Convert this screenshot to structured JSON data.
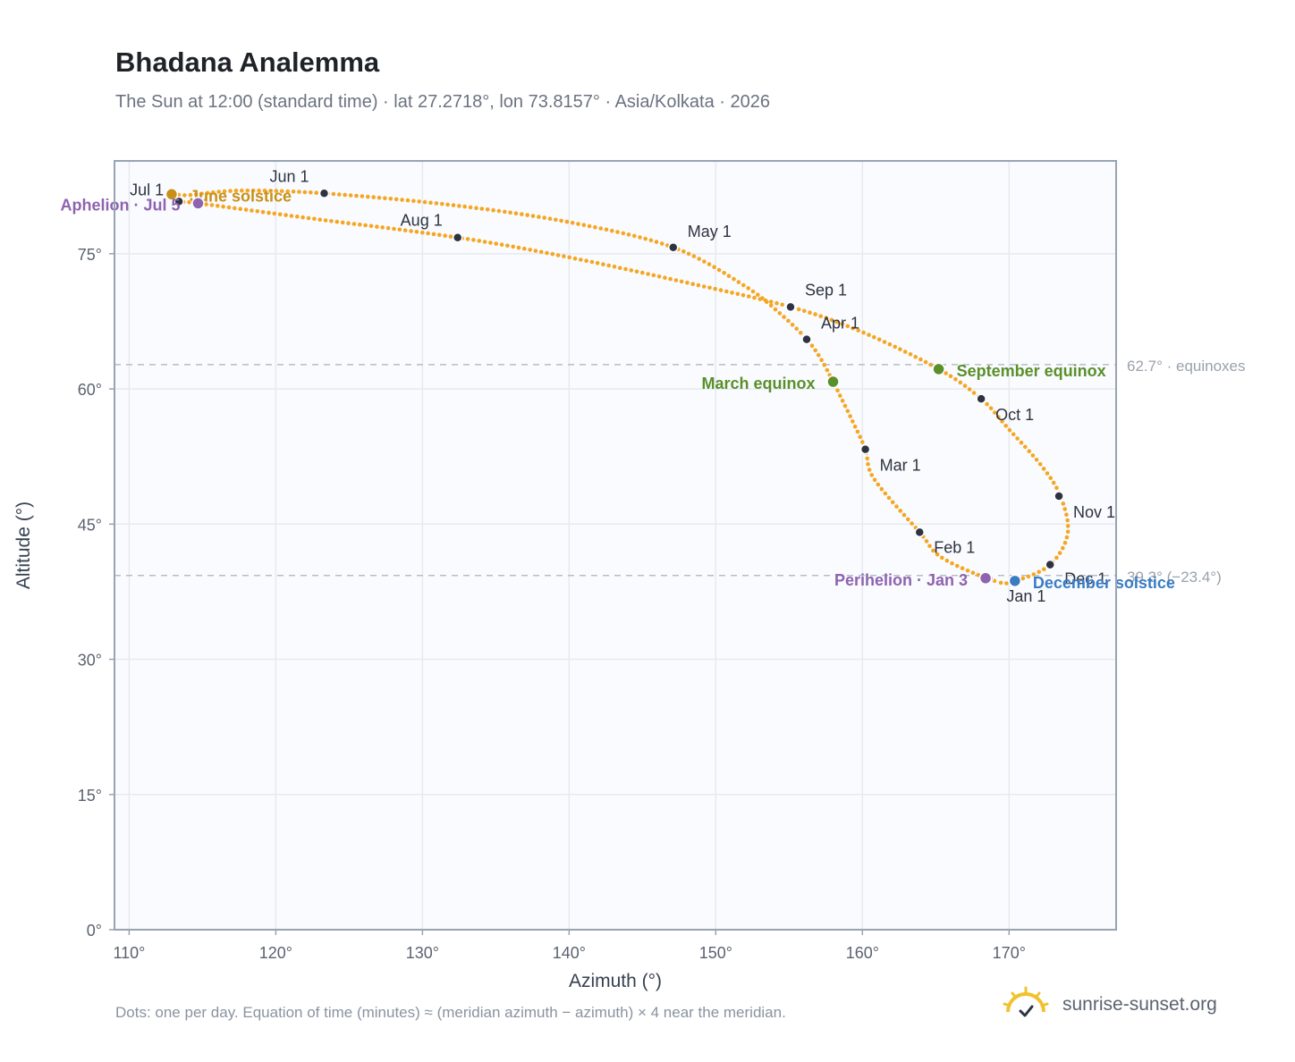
{
  "header": {
    "title": "Bhadana Analemma",
    "subtitle": "The Sun at 12:00 (standard time) · lat 27.2718°, lon 73.8157° · Asia/Kolkata · 2026"
  },
  "footer": {
    "note": "Dots: one per day. Equation of time (minutes) ≈ (meridian azimuth − azimuth) × 4 near the meridian.",
    "brand": "sunrise-sunset.org",
    "brand_icon": "sun-logo-icon"
  },
  "colors": {
    "curve": "#f5a623",
    "month_marker": "#2d3340",
    "equinox": "#5a8f2a",
    "solstice_june": "#c8901a",
    "solstice_december": "#3a7cc4",
    "apsis": "#8e63b0",
    "reference_line": "#b7bdc6",
    "plot_background": "#f9fbfe",
    "grid": "#e6eaf0",
    "frame": "#98a3b3"
  },
  "chart_data": {
    "type": "scatter",
    "title": "Bhadana Analemma",
    "xlabel": "Azimuth (°)",
    "ylabel": "Altitude (°)",
    "xlim": [
      109,
      177.3
    ],
    "ylim": [
      0,
      85.3
    ],
    "x_ticks": [
      110,
      120,
      130,
      140,
      150,
      160,
      170
    ],
    "x_tick_labels": [
      "110°",
      "120°",
      "130°",
      "140°",
      "150°",
      "160°",
      "170°"
    ],
    "y_ticks": [
      0,
      15,
      30,
      45,
      60,
      75
    ],
    "y_tick_labels": [
      "0°",
      "15°",
      "30°",
      "45°",
      "60°",
      "75°"
    ],
    "grid": true,
    "series": [
      {
        "kind": "daily-path",
        "points": [
          [
            169.0,
            38.7
          ],
          [
            165.4,
            41.3
          ],
          [
            163.9,
            44.1
          ],
          [
            160.8,
            50.0
          ],
          [
            160.2,
            53.3
          ],
          [
            159.3,
            56.5
          ],
          [
            158.0,
            60.8
          ],
          [
            157.1,
            63.5
          ],
          [
            156.2,
            65.5
          ],
          [
            154.5,
            68.2
          ],
          [
            152.0,
            71.4
          ],
          [
            147.1,
            75.7
          ],
          [
            140.0,
            78.5
          ],
          [
            132.0,
            80.4
          ],
          [
            123.3,
            81.7
          ],
          [
            117.5,
            82.0
          ],
          [
            114.0,
            81.5
          ],
          [
            112.9,
            81.6
          ],
          [
            113.4,
            80.8
          ],
          [
            114.7,
            80.6
          ],
          [
            122.0,
            79.0
          ],
          [
            132.4,
            76.8
          ],
          [
            140.0,
            74.6
          ],
          [
            148.0,
            71.8
          ],
          [
            155.1,
            69.1
          ],
          [
            160.0,
            66.3
          ],
          [
            165.2,
            62.2
          ],
          [
            168.1,
            58.9
          ],
          [
            170.0,
            55.5
          ],
          [
            172.2,
            51.5
          ],
          [
            173.5,
            48.1
          ],
          [
            174.0,
            44.0
          ],
          [
            172.8,
            40.5
          ],
          [
            170.4,
            38.7
          ],
          [
            169.0,
            38.7
          ]
        ]
      }
    ],
    "month_markers": [
      {
        "label": "Jan 1",
        "x": 168.6,
        "y": 39.0
      },
      {
        "label": "Feb 1",
        "x": 163.9,
        "y": 44.1
      },
      {
        "label": "Mar 1",
        "x": 160.2,
        "y": 53.3
      },
      {
        "label": "Apr 1",
        "x": 156.2,
        "y": 65.5
      },
      {
        "label": "May 1",
        "x": 147.1,
        "y": 75.7
      },
      {
        "label": "Jun 1",
        "x": 123.3,
        "y": 81.7
      },
      {
        "label": "Jul 1",
        "x": 113.4,
        "y": 80.8
      },
      {
        "label": "Aug 1",
        "x": 132.4,
        "y": 76.8
      },
      {
        "label": "Sep 1",
        "x": 155.1,
        "y": 69.1
      },
      {
        "label": "Oct 1",
        "x": 168.1,
        "y": 58.9
      },
      {
        "label": "Nov 1",
        "x": 173.4,
        "y": 48.1
      },
      {
        "label": "Dec 1",
        "x": 172.8,
        "y": 40.5
      }
    ],
    "events": [
      {
        "label": "March equinox",
        "x": 158.0,
        "y": 60.8,
        "category": "equinox"
      },
      {
        "label": "September equinox",
        "x": 165.2,
        "y": 62.2,
        "category": "equinox"
      },
      {
        "label": "June solstice",
        "x": 112.9,
        "y": 81.6,
        "category": "solstice_june"
      },
      {
        "label": "December solstice",
        "x": 170.4,
        "y": 38.7,
        "category": "solstice_december"
      },
      {
        "label": "Perihelion · Jan 3",
        "x": 168.4,
        "y": 39.0,
        "category": "apsis"
      },
      {
        "label": "Aphelion · Jul 5",
        "x": 114.7,
        "y": 80.6,
        "category": "apsis"
      }
    ],
    "reference_lines": [
      {
        "y": 62.7,
        "label": "62.7° · equinoxes"
      },
      {
        "y": 39.3,
        "label": "39.3° (−23.4°)"
      }
    ]
  }
}
